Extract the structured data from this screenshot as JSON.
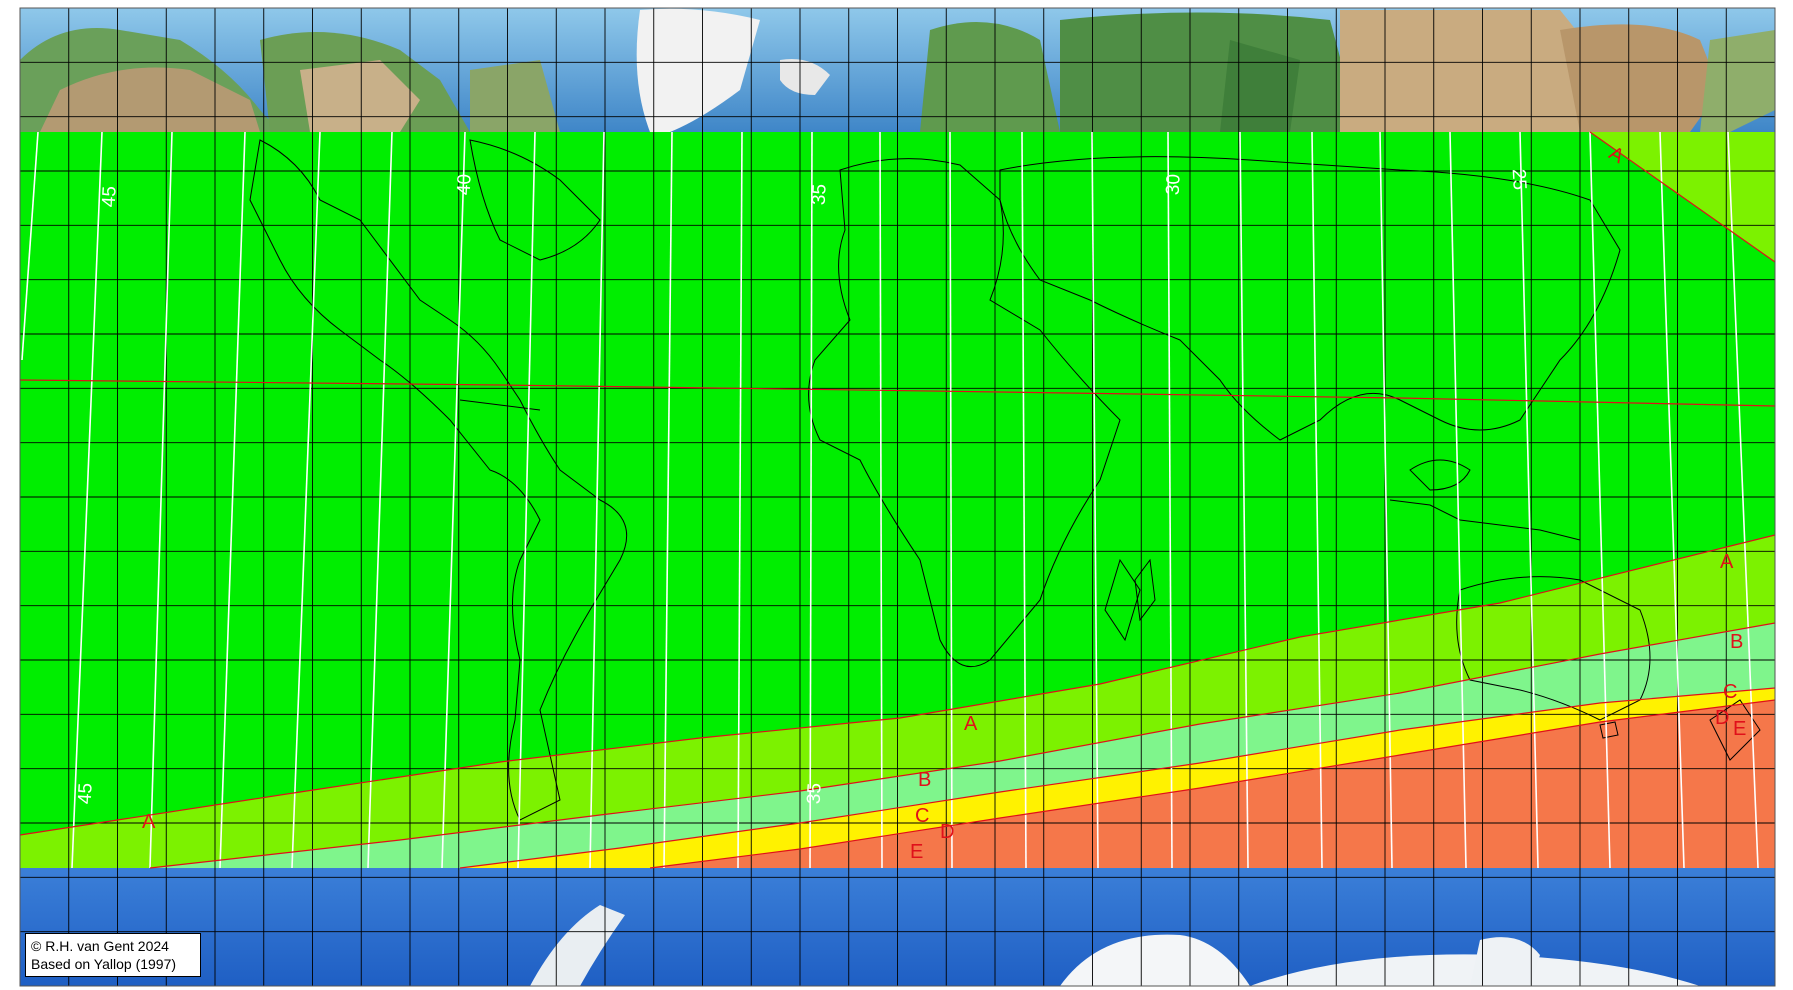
{
  "map": {
    "credit": {
      "line1": "© R.H. van Gent 2024",
      "line2": "Based on Yallop (1997)"
    },
    "zone_labels": {
      "a_north": "A",
      "a_left": "A",
      "a_mid": "A",
      "a_right": "A",
      "b_mid": "B",
      "b_right": "B",
      "c_mid": "C",
      "c_right": "C",
      "d_mid": "D",
      "d_right": "D",
      "e_mid": "E",
      "e_right": "E"
    },
    "contour_labels": {
      "c45_top": "45",
      "c45_bottom": "45",
      "c40": "40",
      "c35": "35",
      "c35_bottom": "35",
      "c30": "30",
      "c25": "25"
    },
    "zone_colors": {
      "A": "#00ee00",
      "B": "#7cf200",
      "C": "#7ff58c",
      "D": "#fff200",
      "E": "#f5774a",
      "boundary": "#e0101a",
      "ocean": "#2f6fd0",
      "land": "#b7a07a"
    }
  }
}
